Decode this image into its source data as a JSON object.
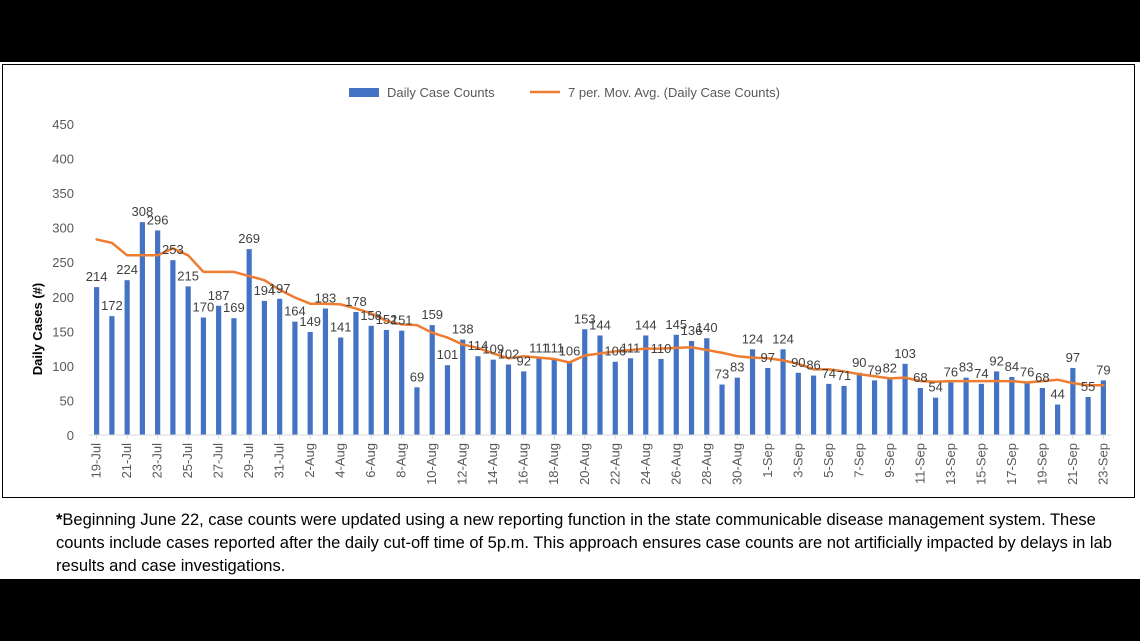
{
  "chart_data": {
    "type": "bar",
    "title": "",
    "xlabel": "",
    "ylabel": "Daily Cases (#)",
    "ylim": [
      0,
      450
    ],
    "yticks": [
      0,
      50,
      100,
      150,
      200,
      250,
      300,
      350,
      400,
      450
    ],
    "grid": false,
    "legend_position": "top-center",
    "colors": {
      "bars": "#4472C4",
      "moving_average": "#ED7D31"
    },
    "categories": [
      "19-Jul",
      "20-Jul",
      "21-Jul",
      "22-Jul",
      "23-Jul",
      "24-Jul",
      "25-Jul",
      "26-Jul",
      "27-Jul",
      "28-Jul",
      "29-Jul",
      "30-Jul",
      "31-Jul",
      "1-Aug",
      "2-Aug",
      "3-Aug",
      "4-Aug",
      "5-Aug",
      "6-Aug",
      "7-Aug",
      "8-Aug",
      "9-Aug",
      "10-Aug",
      "11-Aug",
      "12-Aug",
      "13-Aug",
      "14-Aug",
      "15-Aug",
      "16-Aug",
      "17-Aug",
      "18-Aug",
      "19-Aug",
      "20-Aug",
      "21-Aug",
      "22-Aug",
      "23-Aug",
      "24-Aug",
      "25-Aug",
      "26-Aug",
      "27-Aug",
      "28-Aug",
      "29-Aug",
      "30-Aug",
      "31-Aug",
      "1-Sep",
      "2-Sep",
      "3-Sep",
      "4-Sep",
      "5-Sep",
      "6-Sep",
      "7-Sep",
      "8-Sep",
      "9-Sep",
      "10-Sep",
      "11-Sep",
      "12-Sep",
      "13-Sep",
      "14-Sep",
      "15-Sep",
      "16-Sep",
      "17-Sep",
      "18-Sep",
      "19-Sep",
      "20-Sep",
      "21-Sep",
      "22-Sep",
      "23-Sep"
    ],
    "x_tick_labels": [
      "19-Jul",
      "21-Jul",
      "23-Jul",
      "25-Jul",
      "27-Jul",
      "29-Jul",
      "31-Jul",
      "2-Aug",
      "4-Aug",
      "6-Aug",
      "8-Aug",
      "10-Aug",
      "12-Aug",
      "14-Aug",
      "16-Aug",
      "18-Aug",
      "20-Aug",
      "22-Aug",
      "24-Aug",
      "26-Aug",
      "28-Aug",
      "30-Aug",
      "1-Sep",
      "3-Sep",
      "5-Sep",
      "7-Sep",
      "9-Sep",
      "11-Sep",
      "13-Sep",
      "15-Sep",
      "17-Sep",
      "19-Sep",
      "21-Sep",
      "23-Sep"
    ],
    "series": [
      {
        "name": "Daily Case Counts",
        "type": "bar",
        "values": [
          214,
          172,
          224,
          308,
          296,
          253,
          215,
          170,
          187,
          169,
          269,
          194,
          197,
          164,
          149,
          183,
          141,
          178,
          158,
          152,
          151,
          69,
          159,
          101,
          138,
          114,
          109,
          102,
          92,
          111,
          111,
          106,
          153,
          144,
          106,
          111,
          144,
          110,
          145,
          136,
          140,
          73,
          83,
          124,
          97,
          124,
          90,
          86,
          74,
          71,
          90,
          79,
          82,
          103,
          68,
          54,
          76,
          83,
          74,
          92,
          84,
          76,
          68,
          44,
          97,
          55,
          79
        ]
      },
      {
        "name": "7 per. Mov. Avg. (Daily Case Counts)",
        "type": "line",
        "values": [
          283,
          278,
          260,
          260,
          260,
          270,
          260,
          236,
          236,
          236,
          230,
          224,
          210,
          199,
          190,
          190,
          189,
          183,
          176,
          165,
          160,
          159,
          148,
          141,
          131,
          126,
          118,
          111,
          114,
          112,
          110,
          105,
          115,
          118,
          121,
          123,
          125,
          125,
          126,
          127,
          123,
          119,
          114,
          112,
          111,
          108,
          103,
          95,
          95,
          92,
          88,
          85,
          82,
          83,
          78,
          77,
          78,
          78,
          78,
          78,
          78,
          76,
          78,
          80,
          75,
          72,
          72
        ]
      }
    ]
  },
  "footnote": {
    "marker": "*",
    "text": "Beginning June 22, case counts were updated using a new reporting function in the state communicable disease management system.  These counts include cases reported after the daily cut-off time of 5p.m.  This approach ensures case counts are not artificially impacted by delays in lab results and case investigations."
  }
}
